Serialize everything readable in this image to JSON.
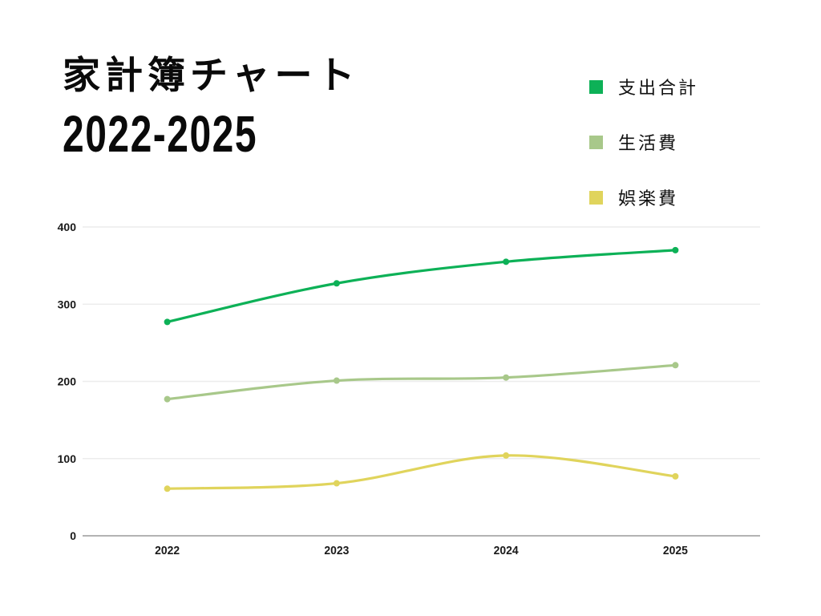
{
  "title": {
    "line1": "家計簿チャート",
    "line2": "2022-2025"
  },
  "legend": {
    "items": [
      {
        "label": "支出合計",
        "color": "#0db157"
      },
      {
        "label": "生活費",
        "color": "#a8c88a"
      },
      {
        "label": "娯楽費",
        "color": "#e0d45c"
      }
    ]
  },
  "chart_data": {
    "type": "line",
    "title": "家計簿チャート 2022-2025",
    "categories": [
      "2022",
      "2023",
      "2024",
      "2025"
    ],
    "series": [
      {
        "name": "支出合計",
        "color": "#0db157",
        "values": [
          277,
          327,
          355,
          370
        ]
      },
      {
        "name": "生活費",
        "color": "#a8c88a",
        "values": [
          177,
          201,
          205,
          221
        ]
      },
      {
        "name": "娯楽費",
        "color": "#e0d45c",
        "values": [
          61,
          68,
          104,
          77
        ]
      }
    ],
    "xlabel": "",
    "ylabel": "",
    "ylim": [
      0,
      400
    ],
    "yticks": [
      0,
      100,
      200,
      300,
      400
    ],
    "grid": true,
    "smooth": true,
    "legend_position": "top-right"
  },
  "colors": {
    "background": "#ffffff",
    "gridline": "#ececec",
    "axis_line": "#b3b3b3",
    "tick_text": "#1a1a1a",
    "title_text": "#0a0a0a"
  }
}
